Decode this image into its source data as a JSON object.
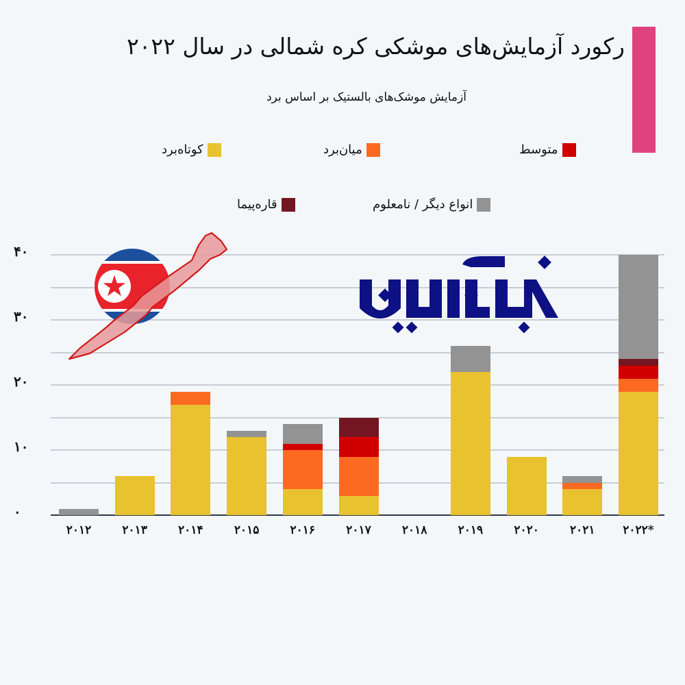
{
  "header": {
    "title": "رکورد آزمایش‌های موشکی کره شمالی در سال ۲۰۲۲",
    "subtitle": "آزمایش موشک‌های بالستیک بر اساس برد",
    "accent_color": "#df437d"
  },
  "legend": {
    "items": [
      {
        "key": "short",
        "label": "کوتاه‌برد",
        "color": "#e8c22f"
      },
      {
        "key": "medium",
        "label": "میان‌برد",
        "color": "#fc6a22"
      },
      {
        "key": "intermediate",
        "label": "متوسط",
        "color": "#d10000"
      },
      {
        "key": "icbm",
        "label": "قاره‌پیما",
        "color": "#731621"
      },
      {
        "key": "other",
        "label": "انواع دیگر / نامعلوم",
        "color": "#939393"
      }
    ]
  },
  "logo": {
    "text": "خبرآنلاین",
    "color": "#0d1184"
  },
  "decor": {
    "flag": "north-korea-flag-icon",
    "missile": "missile-icon"
  },
  "axis": {
    "y_ticks": [
      {
        "value": 0,
        "label": "۰"
      },
      {
        "value": 10,
        "label": "۱۰"
      },
      {
        "value": 20,
        "label": "۲۰"
      },
      {
        "value": 30,
        "label": "۳۰"
      },
      {
        "value": 40,
        "label": "۴۰"
      }
    ],
    "x_labels": [
      "۲۰۱۲",
      "۲۰۱۳",
      "۲۰۱۴",
      "۲۰۱۵",
      "۲۰۱۶",
      "۲۰۱۷",
      "۲۰۱۸",
      "۲۰۱۹",
      "۲۰۲۰",
      "۲۰۲۱",
      "۲۰۲۲*"
    ]
  },
  "chart_data": {
    "type": "bar",
    "stacked": true,
    "title": "رکورد آزمایش‌های موشکی کره شمالی در سال ۲۰۲۲",
    "subtitle": "آزمایش موشک‌های بالستیک بر اساس برد",
    "xlabel": "",
    "ylabel": "",
    "ylim": [
      0,
      40
    ],
    "grid": true,
    "grid_step": 5,
    "legend_position": "top",
    "categories": [
      "2012",
      "2013",
      "2014",
      "2015",
      "2016",
      "2017",
      "2018",
      "2019",
      "2020",
      "2021",
      "2022*"
    ],
    "series": [
      {
        "name": "کوتاه‌برد",
        "color": "#e8c22f",
        "values": [
          0,
          6,
          17,
          12,
          4,
          3,
          0,
          22,
          9,
          4,
          19
        ]
      },
      {
        "name": "میان‌برد",
        "color": "#fc6a22",
        "values": [
          0,
          0,
          2,
          0,
          6,
          6,
          0,
          0,
          0,
          1,
          2
        ]
      },
      {
        "name": "متوسط",
        "color": "#d10000",
        "values": [
          0,
          0,
          0,
          0,
          1,
          3,
          0,
          0,
          0,
          0,
          2
        ]
      },
      {
        "name": "قاره‌پیما",
        "color": "#731621",
        "values": [
          0,
          0,
          0,
          0,
          0,
          3,
          0,
          0,
          0,
          0,
          1
        ]
      },
      {
        "name": "انواع دیگر / نامعلوم",
        "color": "#939393",
        "values": [
          1,
          0,
          0,
          1,
          3,
          0,
          0,
          4,
          0,
          1,
          16
        ]
      }
    ],
    "totals": [
      1,
      6,
      19,
      13,
      14,
      15,
      0,
      26,
      9,
      6,
      40
    ]
  }
}
